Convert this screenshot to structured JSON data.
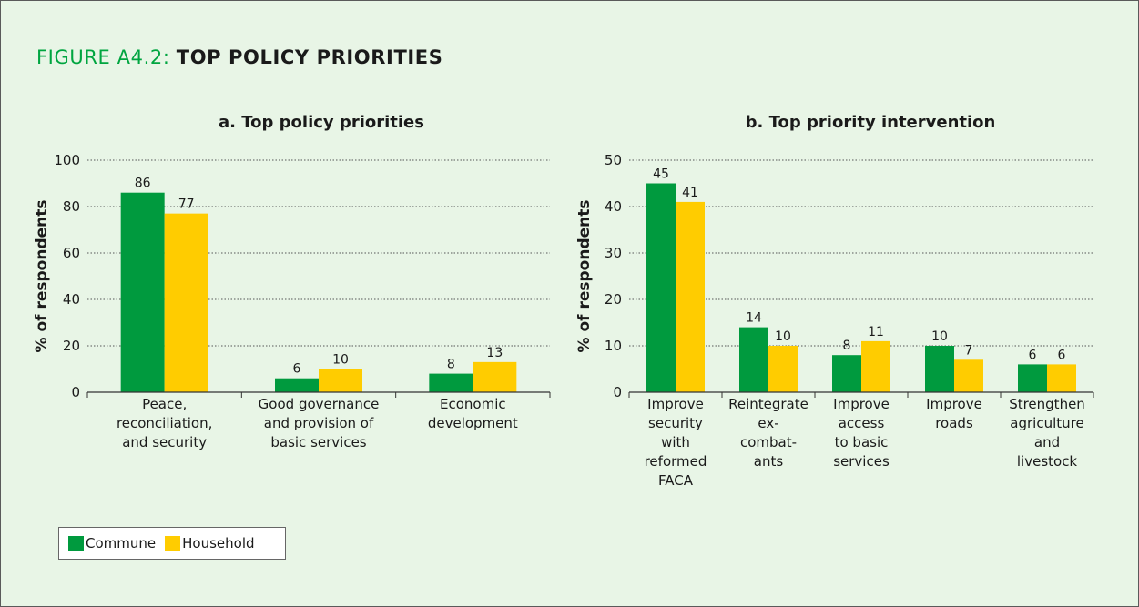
{
  "figure": {
    "title_prefix": "FIGURE A4.2:",
    "title_main": "TOP POLICY PRIORITIES"
  },
  "colors": {
    "commune": "#009a3e",
    "household": "#ffcc00",
    "panel_bg": "#e8f5e6"
  },
  "legend": {
    "items": [
      {
        "label": "Commune",
        "color": "#009a3e"
      },
      {
        "label": "Household",
        "color": "#ffcc00"
      }
    ]
  },
  "chart_data": [
    {
      "type": "bar",
      "title": "a. Top policy priorities",
      "ylabel": "% of respondents",
      "xlabel": "",
      "ylim": [
        0,
        100
      ],
      "yticks": [
        0,
        20,
        40,
        60,
        80,
        100
      ],
      "categories": [
        [
          "Peace,",
          "reconciliation,",
          "and security"
        ],
        [
          "Good governance",
          "and provision of",
          "basic services"
        ],
        [
          "Economic",
          "development"
        ]
      ],
      "series": [
        {
          "name": "Commune",
          "values": [
            86,
            6,
            8
          ]
        },
        {
          "name": "Household",
          "values": [
            77,
            10,
            13
          ]
        }
      ]
    },
    {
      "type": "bar",
      "title": "b. Top priority intervention",
      "ylabel": "% of respondents",
      "xlabel": "",
      "ylim": [
        0,
        50
      ],
      "yticks": [
        0,
        10,
        20,
        30,
        40,
        50
      ],
      "categories": [
        [
          "Improve",
          "security",
          "with",
          "reformed",
          "FACA"
        ],
        [
          "Reintegrate",
          "ex-",
          "combat-",
          "ants"
        ],
        [
          "Improve",
          "access",
          "to basic",
          "services"
        ],
        [
          "Improve",
          "roads"
        ],
        [
          "Strengthen",
          "agriculture",
          "and",
          "livestock"
        ]
      ],
      "series": [
        {
          "name": "Commune",
          "values": [
            45,
            14,
            8,
            10,
            6
          ]
        },
        {
          "name": "Household",
          "values": [
            41,
            10,
            11,
            7,
            6
          ]
        }
      ]
    }
  ]
}
